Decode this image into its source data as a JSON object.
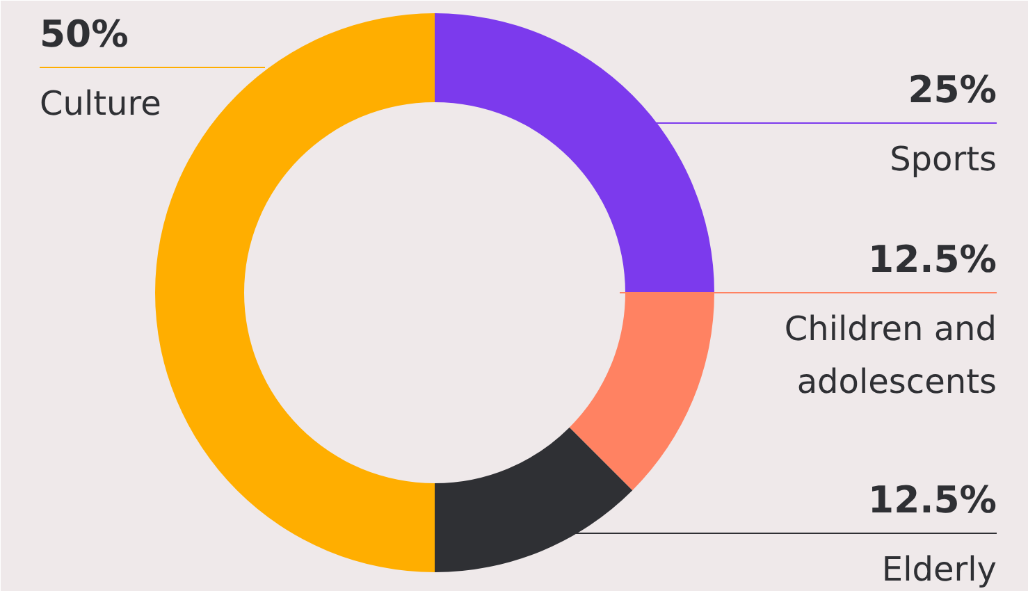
{
  "chart_data": {
    "type": "donut",
    "categories": [
      "Sports",
      "Children and adolescents",
      "Elderly",
      "Culture"
    ],
    "values": [
      25,
      12.5,
      12.5,
      50
    ],
    "value_labels": [
      "25%",
      "12.5%",
      "12.5%",
      "50%"
    ],
    "colors": [
      "#7c3aed",
      "#ff8262",
      "#2f3034",
      "#ffae00"
    ]
  }
}
